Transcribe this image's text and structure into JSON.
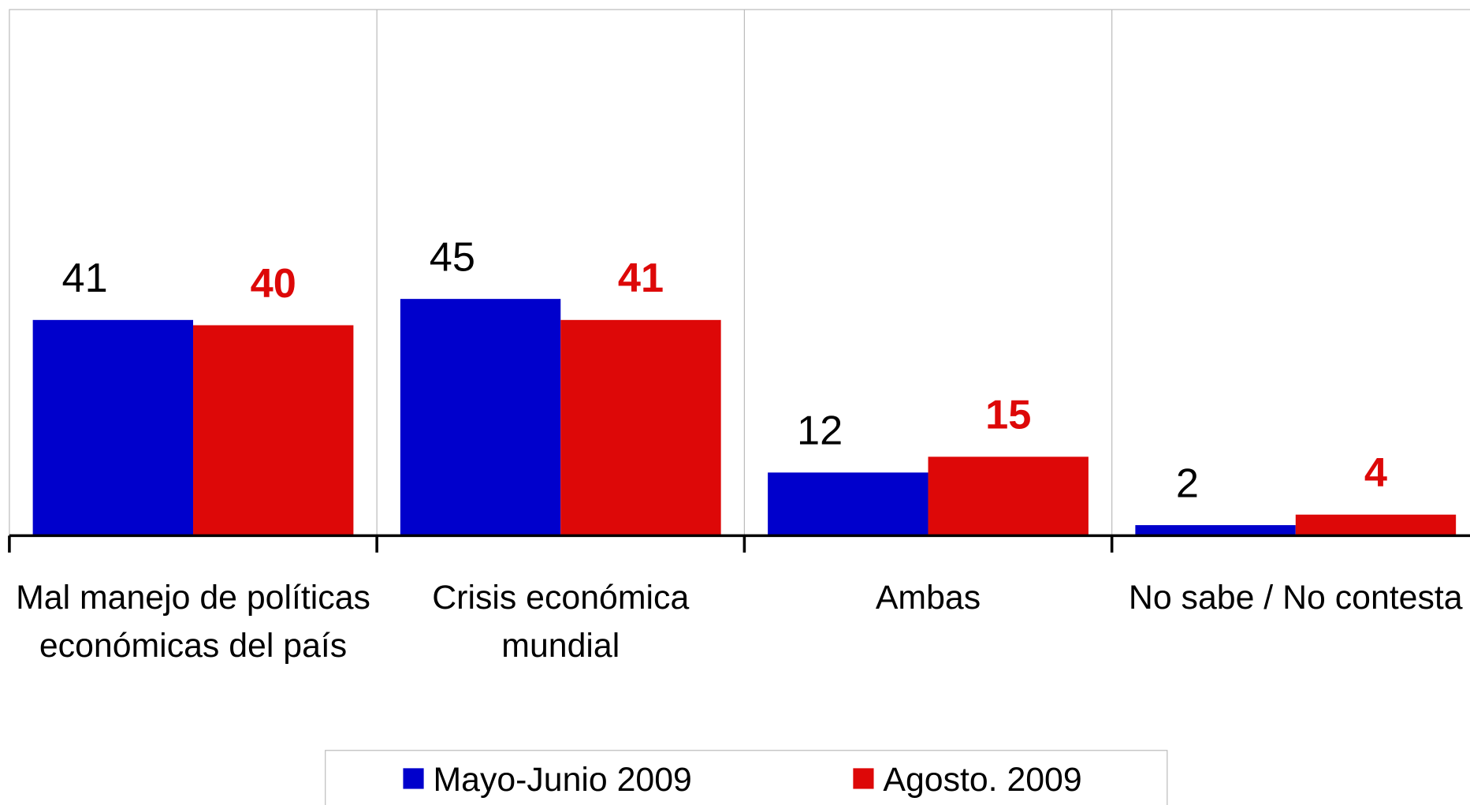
{
  "chart_data": {
    "type": "bar",
    "categories": [
      "Mal manejo de políticas económicas del país",
      "Crisis económica mundial",
      "Ambas",
      "No sabe / No contesta"
    ],
    "series": [
      {
        "name": "Mayo-Junio 2009",
        "color": "#0000cc",
        "values": [
          41,
          45,
          12,
          2
        ]
      },
      {
        "name": "Agosto. 2009",
        "color": "#dd0808",
        "values": [
          40,
          41,
          15,
          4
        ]
      }
    ],
    "ylim": [
      0,
      100
    ],
    "legend": "bottom"
  }
}
